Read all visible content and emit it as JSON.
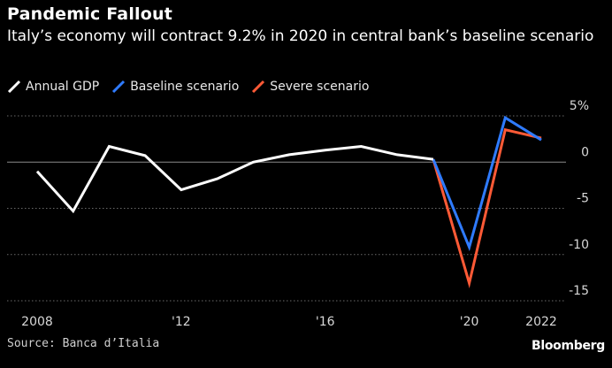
{
  "header": {
    "title": "Pandemic Fallout",
    "subtitle": "Italy’s economy will contract 9.2% in 2020 in central bank’s baseline scenario"
  },
  "legend": [
    {
      "label": "Annual GDP",
      "color": "#ffffff"
    },
    {
      "label": "Baseline scenario",
      "color": "#2f7bff"
    },
    {
      "label": "Severe scenario",
      "color": "#ff5a36"
    }
  ],
  "footer": {
    "source": "Source: Banca d’Italia",
    "brand": "Bloomberg"
  },
  "chart_data": {
    "type": "line",
    "title": "Pandemic Fallout",
    "xlabel": "",
    "ylabel": "",
    "x_range": [
      2008,
      2022
    ],
    "ylim": [
      -15,
      5
    ],
    "x_ticks": [
      {
        "value": 2008,
        "label": "2008"
      },
      {
        "value": 2012,
        "label": "'12"
      },
      {
        "value": 2016,
        "label": "'16"
      },
      {
        "value": 2020,
        "label": "'20"
      },
      {
        "value": 2022,
        "label": "2022"
      }
    ],
    "y_ticks": [
      {
        "value": 5,
        "label": "5%"
      },
      {
        "value": 0,
        "label": "0"
      },
      {
        "value": -5,
        "label": "-5"
      },
      {
        "value": -10,
        "label": "-10"
      },
      {
        "value": -15,
        "label": "-15"
      }
    ],
    "series": [
      {
        "name": "Severe scenario",
        "color": "#ff5a36",
        "points": [
          [
            2019,
            0.3
          ],
          [
            2020,
            -13.1
          ],
          [
            2021,
            3.5
          ],
          [
            2022,
            2.6
          ]
        ]
      },
      {
        "name": "Baseline scenario",
        "color": "#2f7bff",
        "points": [
          [
            2019,
            0.3
          ],
          [
            2020,
            -9.2
          ],
          [
            2021,
            4.8
          ],
          [
            2022,
            2.4
          ]
        ]
      },
      {
        "name": "Annual GDP",
        "color": "#ffffff",
        "points": [
          [
            2008,
            -1.0
          ],
          [
            2009,
            -5.3
          ],
          [
            2010,
            1.7
          ],
          [
            2011,
            0.7
          ],
          [
            2012,
            -3.0
          ],
          [
            2013,
            -1.8
          ],
          [
            2014,
            0.0
          ],
          [
            2015,
            0.8
          ],
          [
            2016,
            1.3
          ],
          [
            2017,
            1.7
          ],
          [
            2018,
            0.8
          ],
          [
            2019,
            0.3
          ]
        ]
      }
    ]
  }
}
